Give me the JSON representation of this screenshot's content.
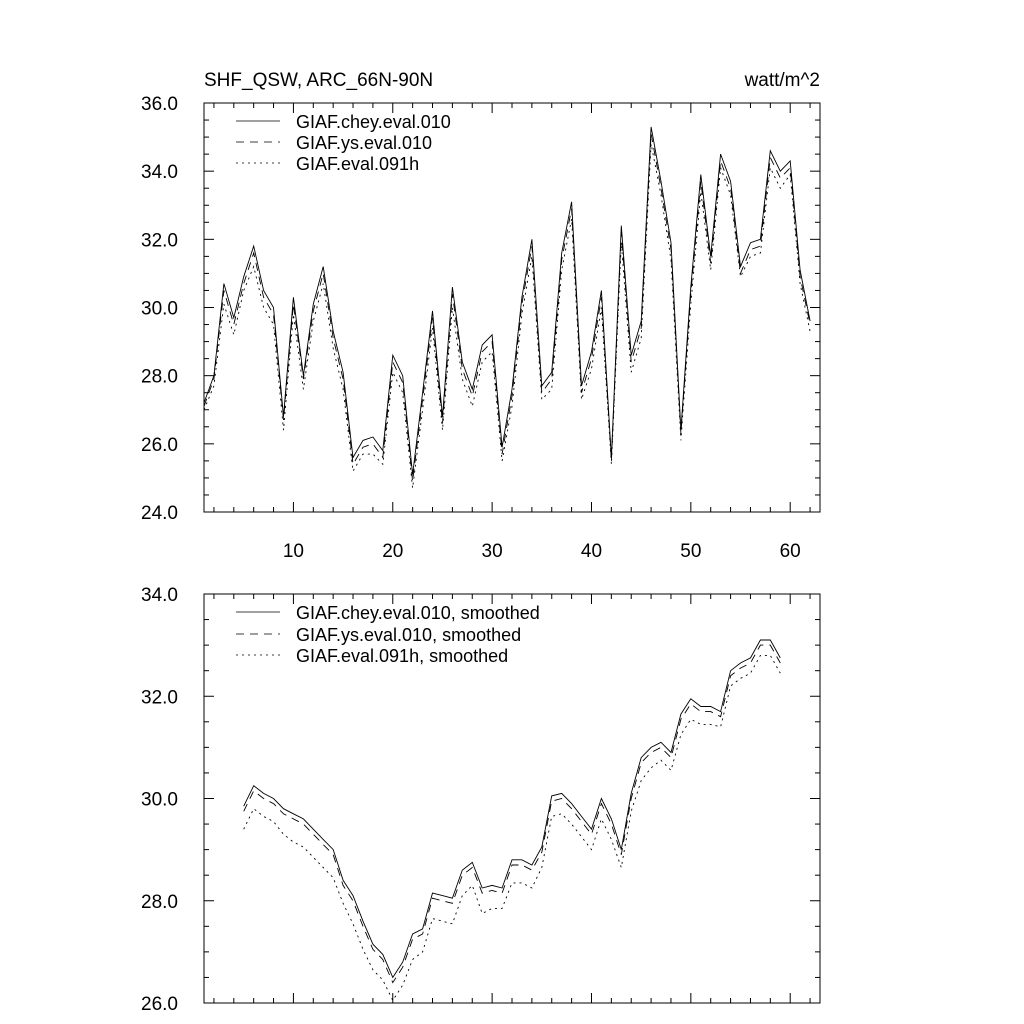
{
  "header": {
    "title": "SHF_QSW, ARC_66N-90N",
    "units": "watt/m^2"
  },
  "chart_data": [
    {
      "type": "line",
      "xlim": [
        1,
        63
      ],
      "ylim": [
        24,
        36
      ],
      "yticks": [
        "24.0",
        "26.0",
        "28.0",
        "30.0",
        "32.0",
        "34.0",
        "36.0"
      ],
      "xticks": [
        "10",
        "20",
        "30",
        "40",
        "50",
        "60"
      ],
      "legend_position": "top-left",
      "x": [
        1,
        2,
        3,
        4,
        5,
        6,
        7,
        8,
        9,
        10,
        11,
        12,
        13,
        14,
        15,
        16,
        17,
        18,
        19,
        20,
        21,
        22,
        23,
        24,
        25,
        26,
        27,
        28,
        29,
        30,
        31,
        32,
        33,
        34,
        35,
        36,
        37,
        38,
        39,
        40,
        41,
        42,
        43,
        44,
        45,
        46,
        47,
        48,
        49,
        50,
        51,
        52,
        53,
        54,
        55,
        56,
        57,
        58,
        59,
        60,
        61,
        62
      ],
      "series": [
        {
          "name": "GIAF.chey.eval.010",
          "style": "solid",
          "values": [
            27.2,
            28.0,
            30.7,
            29.7,
            30.9,
            31.8,
            30.5,
            30.0,
            26.8,
            30.3,
            28.0,
            30.1,
            31.2,
            29.3,
            28.1,
            25.6,
            26.1,
            26.2,
            25.8,
            28.6,
            28.0,
            25.1,
            27.5,
            29.9,
            26.8,
            30.6,
            28.4,
            27.6,
            28.9,
            29.2,
            25.9,
            27.6,
            30.3,
            32.0,
            27.7,
            28.1,
            31.6,
            33.1,
            27.7,
            28.7,
            30.5,
            25.6,
            32.4,
            28.6,
            29.6,
            35.3,
            33.7,
            31.9,
            26.4,
            30.6,
            33.9,
            31.5,
            34.5,
            33.7,
            31.2,
            31.9,
            32.0,
            34.6,
            34.0,
            34.3,
            31.1,
            29.6
          ]
        },
        {
          "name": "GIAF.ys.eval.010",
          "style": "dashed",
          "values": [
            27.1,
            27.9,
            30.5,
            29.5,
            30.7,
            31.6,
            30.3,
            29.8,
            26.7,
            30.1,
            27.9,
            29.9,
            31.0,
            29.1,
            27.9,
            25.4,
            25.9,
            26.0,
            25.6,
            28.4,
            27.8,
            24.9,
            27.3,
            29.7,
            26.6,
            30.4,
            28.2,
            27.4,
            28.7,
            29.0,
            25.7,
            27.4,
            30.1,
            31.8,
            27.5,
            27.9,
            31.4,
            32.9,
            27.5,
            28.5,
            30.3,
            25.5,
            32.2,
            28.4,
            29.4,
            35.1,
            33.5,
            31.7,
            26.3,
            30.4,
            33.7,
            31.3,
            34.3,
            33.5,
            31.0,
            31.7,
            31.8,
            34.4,
            33.8,
            34.1,
            30.9,
            29.5
          ]
        },
        {
          "name": "GIAF.eval.091h",
          "style": "dotted",
          "values": [
            27.0,
            27.7,
            30.1,
            29.2,
            30.5,
            31.2,
            30.0,
            29.5,
            26.4,
            29.8,
            27.6,
            29.6,
            30.7,
            28.8,
            27.6,
            25.2,
            25.7,
            25.7,
            25.4,
            28.1,
            27.5,
            24.7,
            27.0,
            29.4,
            26.4,
            30.0,
            27.9,
            27.1,
            28.4,
            28.7,
            25.5,
            27.1,
            29.8,
            31.5,
            27.3,
            27.6,
            31.1,
            32.6,
            27.3,
            28.2,
            30.0,
            25.4,
            31.9,
            28.1,
            29.1,
            34.8,
            33.3,
            31.4,
            26.1,
            30.1,
            33.4,
            31.1,
            34.1,
            33.3,
            30.9,
            31.5,
            31.6,
            34.1,
            33.5,
            33.9,
            30.7,
            29.3
          ]
        }
      ]
    },
    {
      "type": "line",
      "xlim": [
        1,
        63
      ],
      "ylim": [
        26,
        34
      ],
      "yticks": [
        "26.0",
        "28.0",
        "30.0",
        "32.0",
        "34.0"
      ],
      "legend_position": "top-left",
      "x": [
        5,
        6,
        7,
        8,
        9,
        10,
        11,
        12,
        13,
        14,
        15,
        16,
        17,
        18,
        19,
        20,
        21,
        22,
        23,
        24,
        25,
        26,
        27,
        28,
        29,
        30,
        31,
        32,
        33,
        34,
        35,
        36,
        37,
        38,
        39,
        40,
        41,
        42,
        43,
        44,
        45,
        46,
        47,
        48,
        49,
        50,
        51,
        52,
        53,
        54,
        55,
        56,
        57,
        58,
        59
      ],
      "series": [
        {
          "name": "GIAF.chey.eval.010, smoothed",
          "style": "solid",
          "values": [
            29.85,
            30.25,
            30.1,
            30.0,
            29.8,
            29.7,
            29.6,
            29.4,
            29.2,
            29.0,
            28.4,
            28.1,
            27.6,
            27.15,
            26.95,
            26.5,
            26.8,
            27.35,
            27.45,
            28.15,
            28.1,
            28.05,
            28.6,
            28.75,
            28.25,
            28.3,
            28.25,
            28.8,
            28.8,
            28.7,
            29.05,
            30.05,
            30.1,
            29.9,
            29.65,
            29.4,
            30.0,
            29.6,
            29.0,
            30.1,
            30.8,
            31.0,
            31.1,
            30.9,
            31.65,
            31.95,
            31.8,
            31.8,
            31.7,
            32.5,
            32.65,
            32.75,
            33.1,
            33.1,
            32.75
          ]
        },
        {
          "name": "GIAF.ys.eval.010, smoothed",
          "style": "dashed",
          "values": [
            29.75,
            30.15,
            30.0,
            29.9,
            29.7,
            29.6,
            29.5,
            29.3,
            29.1,
            28.9,
            28.3,
            28.0,
            27.5,
            27.05,
            26.85,
            26.4,
            26.7,
            27.25,
            27.35,
            28.05,
            28.0,
            27.95,
            28.5,
            28.65,
            28.15,
            28.2,
            28.15,
            28.7,
            28.7,
            28.6,
            28.95,
            29.95,
            30.0,
            29.8,
            29.55,
            29.3,
            29.9,
            29.5,
            28.9,
            30.0,
            30.7,
            30.9,
            31.0,
            30.8,
            31.55,
            31.85,
            31.7,
            31.7,
            31.6,
            32.4,
            32.55,
            32.65,
            33.0,
            33.0,
            32.65
          ]
        },
        {
          "name": "GIAF.eval.091h, smoothed",
          "style": "dotted",
          "values": [
            29.4,
            29.8,
            29.65,
            29.55,
            29.3,
            29.15,
            29.05,
            28.85,
            28.65,
            28.45,
            27.95,
            27.55,
            27.05,
            26.65,
            26.45,
            26.05,
            26.35,
            26.85,
            27.0,
            27.65,
            27.6,
            27.55,
            28.1,
            28.3,
            27.75,
            27.85,
            27.85,
            28.35,
            28.35,
            28.25,
            28.65,
            29.65,
            29.7,
            29.5,
            29.25,
            29.0,
            29.6,
            29.2,
            28.65,
            29.75,
            30.35,
            30.6,
            30.75,
            30.55,
            31.25,
            31.55,
            31.45,
            31.45,
            31.4,
            32.2,
            32.35,
            32.45,
            32.8,
            32.8,
            32.45
          ]
        }
      ]
    }
  ]
}
